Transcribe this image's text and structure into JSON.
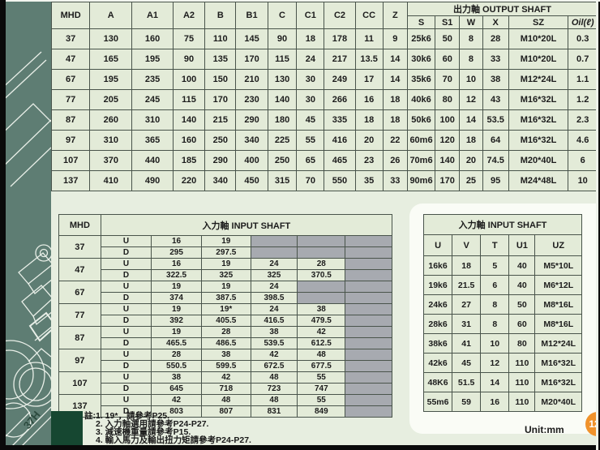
{
  "unit_label": "Unit:mm",
  "page_number": "12",
  "side_label": "37H",
  "colors": {
    "page_bg": "#e7eee0",
    "cell_bg": "#e3ebd8",
    "gray_cell": "#a7aab0",
    "side_strip": "#5e7d73",
    "dark_green": "#164731",
    "badge_orange": "#f0922b"
  },
  "top_table": {
    "col_headers": [
      "MHD",
      "A",
      "A1",
      "A2",
      "B",
      "B1",
      "C",
      "C1",
      "C2",
      "CC",
      "Z"
    ],
    "group_header": "出力軸  OUTPUT SHAFT",
    "sub_headers": [
      "S",
      "S1",
      "W",
      "X",
      "SZ",
      "Oil(ℓ)"
    ],
    "rows": [
      [
        "37",
        "130",
        "160",
        "75",
        "110",
        "145",
        "90",
        "18",
        "178",
        "11",
        "9",
        "25k6",
        "50",
        "8",
        "28",
        "M10*20L",
        "0.3"
      ],
      [
        "47",
        "165",
        "195",
        "90",
        "135",
        "170",
        "115",
        "24",
        "217",
        "13.5",
        "14",
        "30k6",
        "60",
        "8",
        "33",
        "M10*20L",
        "0.7"
      ],
      [
        "67",
        "195",
        "235",
        "100",
        "150",
        "210",
        "130",
        "30",
        "249",
        "17",
        "14",
        "35k6",
        "70",
        "10",
        "38",
        "M12*24L",
        "1.1"
      ],
      [
        "77",
        "205",
        "245",
        "115",
        "170",
        "230",
        "140",
        "30",
        "266",
        "16",
        "18",
        "40k6",
        "80",
        "12",
        "43",
        "M16*32L",
        "1.2"
      ],
      [
        "87",
        "260",
        "310",
        "140",
        "215",
        "290",
        "180",
        "45",
        "335",
        "18",
        "18",
        "50k6",
        "100",
        "14",
        "53.5",
        "M16*32L",
        "2.3"
      ],
      [
        "97",
        "310",
        "365",
        "160",
        "250",
        "340",
        "225",
        "55",
        "416",
        "20",
        "22",
        "60m6",
        "120",
        "18",
        "64",
        "M16*32L",
        "4.6"
      ],
      [
        "107",
        "370",
        "440",
        "185",
        "290",
        "400",
        "250",
        "65",
        "465",
        "23",
        "26",
        "70m6",
        "140",
        "20",
        "74.5",
        "M20*40L",
        "6"
      ],
      [
        "137",
        "410",
        "490",
        "220",
        "340",
        "450",
        "315",
        "70",
        "550",
        "35",
        "33",
        "90m6",
        "170",
        "25",
        "95",
        "M24*48L",
        "10"
      ]
    ]
  },
  "left_table": {
    "mhd_header": "MHD",
    "group_header": "入力軸  INPUT SHAFT",
    "row_labels": [
      "U",
      "D"
    ],
    "groups": [
      {
        "mhd": "37",
        "u": [
          "16",
          "19",
          null,
          null,
          null
        ],
        "d": [
          "295",
          "297.5",
          null,
          null,
          null
        ]
      },
      {
        "mhd": "47",
        "u": [
          "16",
          "19",
          "24",
          "28",
          null
        ],
        "d": [
          "322.5",
          "325",
          "325",
          "370.5",
          null
        ]
      },
      {
        "mhd": "67",
        "u": [
          "19",
          "19",
          "24",
          null,
          null
        ],
        "d": [
          "374",
          "387.5",
          "398.5",
          null,
          null
        ]
      },
      {
        "mhd": "77",
        "u": [
          "19",
          "19*",
          "24",
          "38",
          null
        ],
        "d": [
          "392",
          "405.5",
          "416.5",
          "479.5",
          null
        ]
      },
      {
        "mhd": "87",
        "u": [
          "19",
          "28",
          "38",
          "42",
          null
        ],
        "d": [
          "465.5",
          "486.5",
          "539.5",
          "612.5",
          null
        ]
      },
      {
        "mhd": "97",
        "u": [
          "28",
          "38",
          "42",
          "48",
          null
        ],
        "d": [
          "550.5",
          "599.5",
          "672.5",
          "677.5",
          null
        ]
      },
      {
        "mhd": "107",
        "u": [
          "38",
          "42",
          "48",
          "55",
          null
        ],
        "d": [
          "645",
          "718",
          "723",
          "747",
          null
        ]
      },
      {
        "mhd": "137",
        "u": [
          "42",
          "48",
          "48",
          "55",
          null
        ],
        "d": [
          "803",
          "807",
          "831",
          "849",
          null
        ]
      }
    ]
  },
  "right_table": {
    "group_header": "入力軸  INPUT SHAFT",
    "col_headers": [
      "U",
      "V",
      "T",
      "U1",
      "UZ"
    ],
    "rows": [
      [
        "16k6",
        "18",
        "5",
        "40",
        "M5*10L"
      ],
      [
        "19k6",
        "21.5",
        "6",
        "40",
        "M6*12L"
      ],
      [
        "24k6",
        "27",
        "8",
        "50",
        "M8*16L"
      ],
      [
        "28k6",
        "31",
        "8",
        "60",
        "M8*16L"
      ],
      [
        "38k6",
        "41",
        "10",
        "80",
        "M12*24L"
      ],
      [
        "42k6",
        "45",
        "12",
        "110",
        "M16*32L"
      ],
      [
        "48K6",
        "51.5",
        "14",
        "110",
        "M16*32L"
      ],
      [
        "55m6",
        "59",
        "16",
        "110",
        "M20*40L"
      ]
    ]
  },
  "notes": {
    "prefix": "註:",
    "lines": [
      "1. 19*，請參考P25.",
      "2. 入力軸選用請參考P24-P27.",
      "3. 減速機重量請參考P15.",
      "4. 輸入馬力及輸出扭力矩請參考P24-P27."
    ]
  }
}
